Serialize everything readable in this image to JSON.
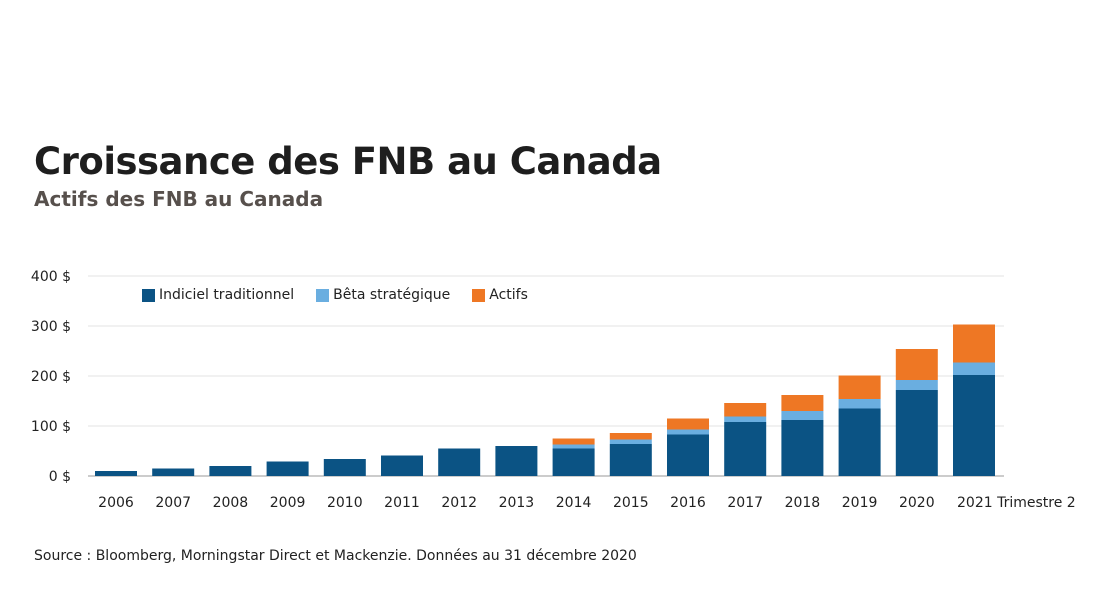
{
  "title": "Croissance des FNB au Canada",
  "subtitle": "Actifs des FNB au Canada",
  "source": "Source : Bloomberg, Morningstar Direct et Mackenzie. Données au 31 décembre 2020",
  "chart_data": {
    "type": "bar",
    "stacked": true,
    "categories": [
      "2006",
      "2007",
      "2008",
      "2009",
      "2010",
      "2011",
      "2012",
      "2013",
      "2014",
      "2015",
      "2016",
      "2017",
      "2018",
      "2019",
      "2020",
      "2021  Trimestre 2"
    ],
    "series": [
      {
        "name": "Indiciel traditionnel",
        "color": "#0b5384",
        "values": [
          10,
          15,
          20,
          29,
          34,
          41,
          55,
          60,
          55,
          64,
          83,
          108,
          112,
          135,
          172,
          202
        ]
      },
      {
        "name": "Bêta stratégique",
        "color": "#6aaee0",
        "values": [
          0,
          0,
          0,
          0,
          0,
          0,
          0,
          0,
          8,
          9,
          10,
          11,
          18,
          19,
          20,
          25
        ]
      },
      {
        "name": "Actifs",
        "color": "#ee7724",
        "values": [
          0,
          0,
          0,
          0,
          0,
          0,
          0,
          0,
          12,
          13,
          22,
          27,
          32,
          47,
          62,
          76
        ]
      }
    ],
    "y_ticks": [
      "0 $",
      "100 $",
      "200 $",
      "300 $",
      "400 $"
    ],
    "y_tick_values": [
      0,
      100,
      200,
      300,
      400
    ],
    "ylim": [
      0,
      400
    ],
    "grid": true,
    "legend_position": "top-left"
  }
}
